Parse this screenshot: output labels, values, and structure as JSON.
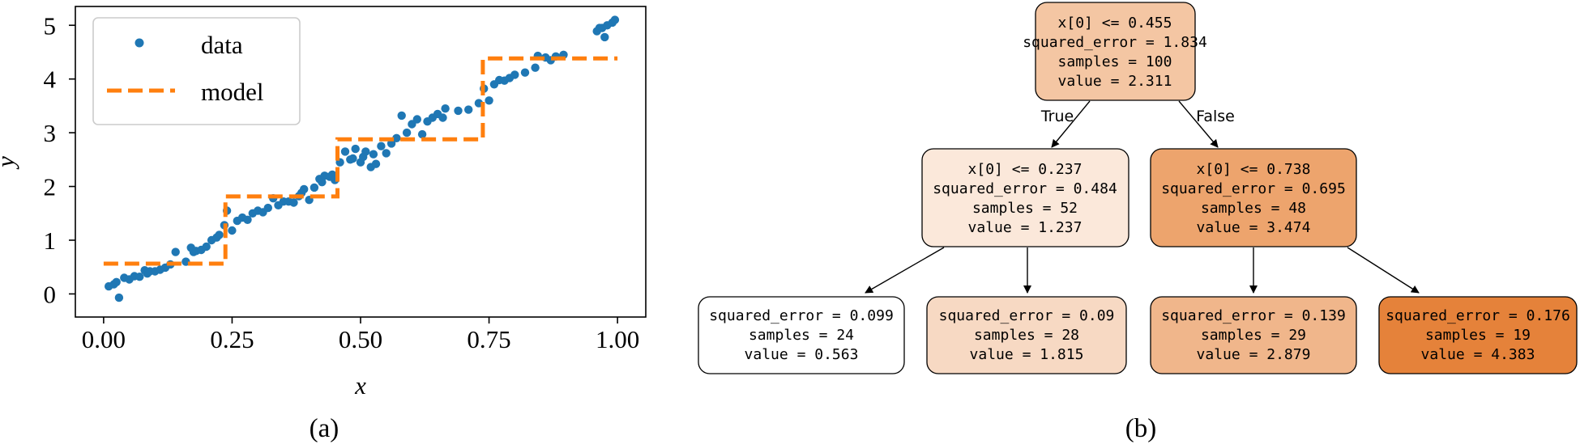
{
  "panel_a": {
    "caption": "(a)",
    "chart_data": {
      "type": "scatter",
      "xlabel": "x",
      "ylabel": "y",
      "xlim": [
        -0.055,
        1.055
      ],
      "ylim": [
        -0.43,
        5.35
      ],
      "xticks": [
        0.0,
        0.25,
        0.5,
        0.75,
        1.0
      ],
      "xtick_labels": [
        "0.00",
        "0.25",
        "0.50",
        "0.75",
        "1.00"
      ],
      "yticks": [
        0,
        1,
        2,
        3,
        4,
        5
      ],
      "ytick_labels": [
        "0",
        "1",
        "2",
        "3",
        "4",
        "5"
      ],
      "grid": false,
      "legend": {
        "placement": "top-left",
        "entries": [
          "data",
          "model"
        ]
      },
      "colors": {
        "data": "#1f77b4",
        "model": "#ff7f0e"
      },
      "series": [
        {
          "name": "data",
          "kind": "scatter",
          "points": [
            [
              0.01,
              0.14
            ],
            [
              0.02,
              0.18
            ],
            [
              0.025,
              0.22
            ],
            [
              0.03,
              -0.07
            ],
            [
              0.04,
              0.3
            ],
            [
              0.05,
              0.27
            ],
            [
              0.06,
              0.33
            ],
            [
              0.07,
              0.32
            ],
            [
              0.08,
              0.44
            ],
            [
              0.085,
              0.38
            ],
            [
              0.09,
              0.42
            ],
            [
              0.1,
              0.42
            ],
            [
              0.11,
              0.45
            ],
            [
              0.12,
              0.49
            ],
            [
              0.13,
              0.55
            ],
            [
              0.14,
              0.78
            ],
            [
              0.16,
              0.6
            ],
            [
              0.17,
              0.86
            ],
            [
              0.175,
              0.78
            ],
            [
              0.18,
              0.8
            ],
            [
              0.19,
              0.82
            ],
            [
              0.2,
              0.88
            ],
            [
              0.21,
              1.0
            ],
            [
              0.22,
              1.05
            ],
            [
              0.225,
              1.1
            ],
            [
              0.235,
              1.28
            ],
            [
              0.24,
              1.55
            ],
            [
              0.25,
              1.18
            ],
            [
              0.26,
              1.36
            ],
            [
              0.27,
              1.42
            ],
            [
              0.28,
              1.38
            ],
            [
              0.29,
              1.5
            ],
            [
              0.3,
              1.55
            ],
            [
              0.31,
              1.52
            ],
            [
              0.32,
              1.6
            ],
            [
              0.33,
              1.78
            ],
            [
              0.34,
              1.65
            ],
            [
              0.35,
              1.72
            ],
            [
              0.36,
              1.72
            ],
            [
              0.37,
              1.7
            ],
            [
              0.38,
              1.82
            ],
            [
              0.385,
              1.88
            ],
            [
              0.39,
              1.95
            ],
            [
              0.4,
              1.75
            ],
            [
              0.41,
              1.98
            ],
            [
              0.42,
              2.14
            ],
            [
              0.425,
              2.08
            ],
            [
              0.43,
              2.2
            ],
            [
              0.44,
              2.18
            ],
            [
              0.445,
              2.22
            ],
            [
              0.45,
              2.12
            ],
            [
              0.46,
              2.45
            ],
            [
              0.47,
              2.65
            ],
            [
              0.48,
              2.5
            ],
            [
              0.485,
              2.52
            ],
            [
              0.49,
              2.7
            ],
            [
              0.5,
              2.45
            ],
            [
              0.505,
              2.55
            ],
            [
              0.51,
              2.65
            ],
            [
              0.52,
              2.36
            ],
            [
              0.525,
              2.6
            ],
            [
              0.53,
              2.42
            ],
            [
              0.54,
              2.75
            ],
            [
              0.55,
              2.62
            ],
            [
              0.56,
              2.8
            ],
            [
              0.57,
              2.9
            ],
            [
              0.58,
              3.32
            ],
            [
              0.59,
              3.0
            ],
            [
              0.6,
              3.16
            ],
            [
              0.61,
              3.25
            ],
            [
              0.62,
              2.97
            ],
            [
              0.63,
              3.21
            ],
            [
              0.64,
              3.28
            ],
            [
              0.65,
              3.35
            ],
            [
              0.66,
              3.28
            ],
            [
              0.665,
              3.45
            ],
            [
              0.69,
              3.41
            ],
            [
              0.71,
              3.43
            ],
            [
              0.73,
              3.55
            ],
            [
              0.74,
              3.82
            ],
            [
              0.75,
              3.6
            ],
            [
              0.76,
              3.9
            ],
            [
              0.77,
              3.98
            ],
            [
              0.78,
              3.97
            ],
            [
              0.79,
              4.02
            ],
            [
              0.8,
              4.08
            ],
            [
              0.82,
              4.12
            ],
            [
              0.84,
              4.21
            ],
            [
              0.845,
              4.43
            ],
            [
              0.86,
              4.4
            ],
            [
              0.87,
              4.35
            ],
            [
              0.88,
              4.42
            ],
            [
              0.895,
              4.45
            ],
            [
              0.96,
              4.89
            ],
            [
              0.965,
              4.95
            ],
            [
              0.97,
              4.95
            ],
            [
              0.975,
              4.78
            ],
            [
              0.98,
              5.0
            ],
            [
              0.99,
              5.05
            ],
            [
              0.995,
              5.1
            ]
          ]
        },
        {
          "name": "model",
          "kind": "step",
          "line_style": "dashed",
          "x": [
            0.0,
            0.237,
            0.237,
            0.455,
            0.455,
            0.738,
            0.738,
            1.0
          ],
          "y": [
            0.563,
            0.563,
            1.815,
            1.815,
            2.879,
            2.879,
            4.383,
            4.383
          ]
        }
      ]
    }
  },
  "panel_b": {
    "caption": "(b)",
    "edge_labels": {
      "true_label": "True",
      "false_label": "False"
    },
    "nodes": [
      {
        "id": "root",
        "lines": [
          "x[0] <= 0.455",
          "squared_error = 1.834",
          "samples = 100",
          "value = 2.311"
        ],
        "fill": "#f4c6a3"
      },
      {
        "id": "left",
        "lines": [
          "x[0] <= 0.237",
          "squared_error = 0.484",
          "samples = 52",
          "value = 1.237"
        ],
        "fill": "#fbe8da"
      },
      {
        "id": "right",
        "lines": [
          "x[0] <= 0.738",
          "squared_error = 0.695",
          "samples = 48",
          "value = 3.474"
        ],
        "fill": "#eda46d"
      },
      {
        "id": "ll",
        "lines": [
          "squared_error = 0.099",
          "samples = 24",
          "value = 0.563"
        ],
        "fill": "#ffffff"
      },
      {
        "id": "lr",
        "lines": [
          "squared_error = 0.09",
          "samples = 28",
          "value = 1.815"
        ],
        "fill": "#f7d9c3"
      },
      {
        "id": "rl",
        "lines": [
          "squared_error = 0.139",
          "samples = 29",
          "value = 2.879"
        ],
        "fill": "#f0b68b"
      },
      {
        "id": "rr",
        "lines": [
          "squared_error = 0.176",
          "samples = 19",
          "value = 4.383"
        ],
        "fill": "#e5823a"
      }
    ]
  }
}
